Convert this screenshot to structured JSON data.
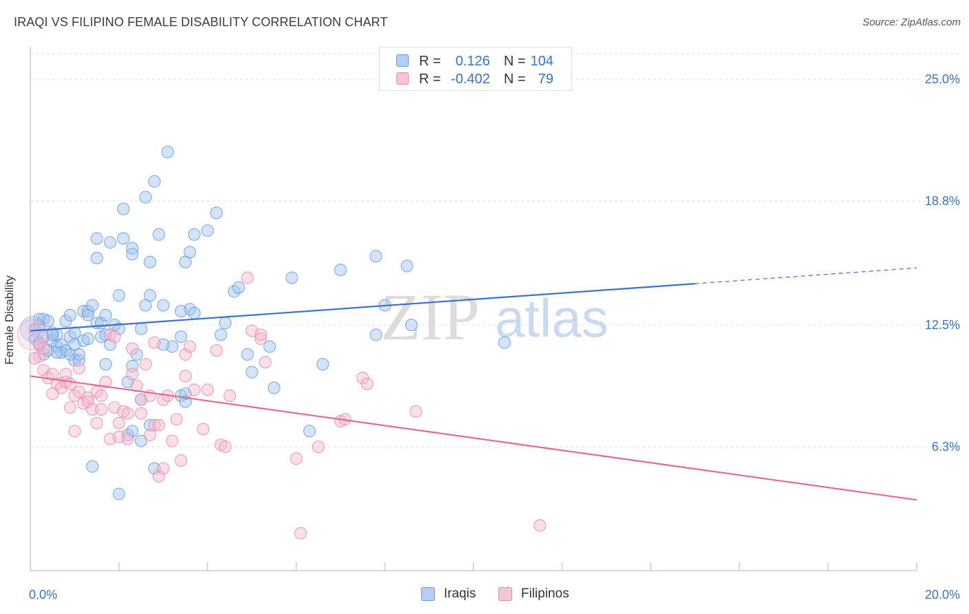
{
  "header": {
    "title": "IRAQI VS FILIPINO FEMALE DISABILITY CORRELATION CHART",
    "source": "Source: ZipAtlas.com"
  },
  "legend": {
    "series": [
      {
        "name": "Iraqis",
        "r_label": "R =",
        "r_value": "0.126",
        "n_label": "N =",
        "n_value": "104",
        "color": "#6699dd",
        "fill": "#b7cdf1"
      },
      {
        "name": "Filipinos",
        "r_label": "R =",
        "r_value": "-0.402",
        "n_label": "N =",
        "n_value": "79",
        "color": "#e888a8",
        "fill": "#f6c5d4"
      }
    ]
  },
  "watermark": {
    "part1": "ZIP",
    "part2": "atlas"
  },
  "chart_data": {
    "type": "scatter",
    "title": "IRAQI VS FILIPINO FEMALE DISABILITY CORRELATION CHART",
    "xlabel": "",
    "ylabel": "Female Disability",
    "xlim": [
      0,
      20
    ],
    "ylim": [
      0,
      26.3
    ],
    "x_tick_labels": [
      "0.0%",
      "20.0%"
    ],
    "y_ticks": [
      25.0,
      18.8,
      12.5,
      6.3
    ],
    "y_tick_labels": [
      "25.0%",
      "18.8%",
      "12.5%",
      "6.3%"
    ],
    "grid": true,
    "legend_position": "top-center",
    "series": [
      {
        "name": "Iraqis",
        "color": "#6699dd",
        "trend": {
          "x0": 0,
          "y0": 12.2,
          "x1": 15.0,
          "y1": 14.6,
          "dashed_to_x": 20.0,
          "dashed_to_y": 15.4
        },
        "points": [
          [
            0.1,
            12.3
          ],
          [
            0.1,
            11.8
          ],
          [
            0.2,
            12.5
          ],
          [
            0.2,
            11.6
          ],
          [
            0.3,
            12.8
          ],
          [
            0.3,
            11.9
          ],
          [
            0.3,
            11.0
          ],
          [
            0.4,
            12.7
          ],
          [
            0.4,
            11.2
          ],
          [
            0.5,
            12.1
          ],
          [
            0.5,
            11.7
          ],
          [
            0.6,
            11.4
          ],
          [
            0.6,
            12.0
          ],
          [
            0.7,
            11.1
          ],
          [
            0.7,
            11.5
          ],
          [
            0.8,
            12.7
          ],
          [
            0.8,
            11.2
          ],
          [
            0.9,
            11.9
          ],
          [
            0.9,
            11.0
          ],
          [
            1.0,
            12.1
          ],
          [
            1.0,
            11.5
          ],
          [
            1.0,
            10.7
          ],
          [
            1.1,
            10.7
          ],
          [
            1.1,
            11.0
          ],
          [
            1.2,
            11.7
          ],
          [
            1.2,
            13.2
          ],
          [
            1.3,
            13.2
          ],
          [
            1.3,
            13.0
          ],
          [
            1.4,
            13.5
          ],
          [
            1.5,
            16.9
          ],
          [
            1.5,
            12.6
          ],
          [
            1.5,
            15.9
          ],
          [
            1.6,
            12.6
          ],
          [
            1.6,
            11.9
          ],
          [
            1.7,
            12.0
          ],
          [
            1.7,
            13.0
          ],
          [
            1.7,
            10.5
          ],
          [
            1.8,
            16.7
          ],
          [
            1.8,
            11.5
          ],
          [
            1.9,
            12.5
          ],
          [
            2.0,
            14.0
          ],
          [
            2.0,
            12.3
          ],
          [
            2.0,
            3.9
          ],
          [
            2.1,
            16.9
          ],
          [
            2.1,
            18.4
          ],
          [
            2.2,
            9.6
          ],
          [
            2.2,
            6.9
          ],
          [
            2.3,
            16.4
          ],
          [
            2.3,
            16.1
          ],
          [
            2.3,
            10.4
          ],
          [
            2.4,
            11.0
          ],
          [
            2.5,
            12.3
          ],
          [
            2.5,
            8.7
          ],
          [
            2.5,
            6.6
          ],
          [
            2.6,
            13.5
          ],
          [
            2.6,
            19.0
          ],
          [
            2.7,
            14.0
          ],
          [
            2.7,
            15.7
          ],
          [
            2.7,
            7.4
          ],
          [
            2.8,
            5.2
          ],
          [
            2.8,
            19.8
          ],
          [
            2.9,
            17.1
          ],
          [
            3.0,
            13.5
          ],
          [
            3.1,
            21.3
          ],
          [
            3.2,
            11.4
          ],
          [
            3.4,
            8.9
          ],
          [
            3.4,
            11.9
          ],
          [
            3.5,
            15.7
          ],
          [
            3.5,
            9.0
          ],
          [
            3.5,
            8.6
          ],
          [
            3.6,
            13.3
          ],
          [
            3.6,
            16.2
          ],
          [
            3.7,
            13.1
          ],
          [
            3.7,
            17.1
          ],
          [
            4.0,
            17.3
          ],
          [
            4.2,
            18.2
          ],
          [
            4.3,
            12.0
          ],
          [
            4.4,
            12.6
          ],
          [
            4.6,
            14.2
          ],
          [
            4.7,
            14.4
          ],
          [
            4.9,
            11.0
          ],
          [
            5.0,
            10.1
          ],
          [
            5.4,
            11.4
          ],
          [
            5.5,
            9.3
          ],
          [
            5.9,
            14.9
          ],
          [
            6.3,
            7.1
          ],
          [
            6.6,
            10.5
          ],
          [
            7.0,
            15.3
          ],
          [
            7.8,
            16.0
          ],
          [
            7.8,
            12.0
          ],
          [
            8.0,
            13.5
          ],
          [
            8.5,
            15.5
          ],
          [
            8.6,
            12.5
          ],
          [
            10.7,
            11.6
          ],
          [
            0.2,
            12.8
          ],
          [
            0.5,
            12.0
          ],
          [
            0.6,
            11.1
          ],
          [
            0.9,
            13.0
          ],
          [
            1.3,
            11.8
          ],
          [
            2.3,
            7.1
          ],
          [
            1.4,
            5.3
          ],
          [
            3.4,
            13.2
          ],
          [
            3.0,
            11.5
          ],
          [
            0.2,
            11.5
          ]
        ]
      },
      {
        "name": "Filipinos",
        "color": "#e888a8",
        "trend": {
          "x0": 0,
          "y0": 9.9,
          "x1": 20.0,
          "y1": 3.6
        },
        "points": [
          [
            0.1,
            12.2
          ],
          [
            0.2,
            11.5
          ],
          [
            0.3,
            10.2
          ],
          [
            0.4,
            9.8
          ],
          [
            0.5,
            10.0
          ],
          [
            0.6,
            9.5
          ],
          [
            0.7,
            9.3
          ],
          [
            0.8,
            9.6
          ],
          [
            0.9,
            8.3
          ],
          [
            0.9,
            9.5
          ],
          [
            1.0,
            8.9
          ],
          [
            1.1,
            10.3
          ],
          [
            1.1,
            9.1
          ],
          [
            1.2,
            8.5
          ],
          [
            1.3,
            8.8
          ],
          [
            1.3,
            8.6
          ],
          [
            1.4,
            8.2
          ],
          [
            1.5,
            9.1
          ],
          [
            1.6,
            8.9
          ],
          [
            1.6,
            8.2
          ],
          [
            1.7,
            9.6
          ],
          [
            1.8,
            6.7
          ],
          [
            1.8,
            12.0
          ],
          [
            1.9,
            11.9
          ],
          [
            1.9,
            8.3
          ],
          [
            2.0,
            7.5
          ],
          [
            2.0,
            6.8
          ],
          [
            2.1,
            8.1
          ],
          [
            2.2,
            6.7
          ],
          [
            2.2,
            8.0
          ],
          [
            2.3,
            11.3
          ],
          [
            2.3,
            10.0
          ],
          [
            2.4,
            9.4
          ],
          [
            2.5,
            8.0
          ],
          [
            2.5,
            8.7
          ],
          [
            2.6,
            10.5
          ],
          [
            2.7,
            8.9
          ],
          [
            2.8,
            7.4
          ],
          [
            2.8,
            11.6
          ],
          [
            2.9,
            7.4
          ],
          [
            3.0,
            8.7
          ],
          [
            3.0,
            5.2
          ],
          [
            3.1,
            8.9
          ],
          [
            3.3,
            7.7
          ],
          [
            3.4,
            5.6
          ],
          [
            3.5,
            9.9
          ],
          [
            3.5,
            11.0
          ],
          [
            3.6,
            11.4
          ],
          [
            3.7,
            9.2
          ],
          [
            3.9,
            7.2
          ],
          [
            4.0,
            9.2
          ],
          [
            4.2,
            11.2
          ],
          [
            4.3,
            6.4
          ],
          [
            4.4,
            6.3
          ],
          [
            4.5,
            8.9
          ],
          [
            4.9,
            14.9
          ],
          [
            5.0,
            12.2
          ],
          [
            5.2,
            11.8
          ],
          [
            5.2,
            12.0
          ],
          [
            5.3,
            10.6
          ],
          [
            6.0,
            5.7
          ],
          [
            6.1,
            1.9
          ],
          [
            6.5,
            6.3
          ],
          [
            7.0,
            7.6
          ],
          [
            7.1,
            7.7
          ],
          [
            7.5,
            9.8
          ],
          [
            7.6,
            9.5
          ],
          [
            8.7,
            8.1
          ],
          [
            11.5,
            2.3
          ],
          [
            0.2,
            10.9
          ],
          [
            0.5,
            9.0
          ],
          [
            0.8,
            10.0
          ],
          [
            1.5,
            7.5
          ],
          [
            2.7,
            6.9
          ],
          [
            3.2,
            6.6
          ],
          [
            1.0,
            7.1
          ],
          [
            2.9,
            4.8
          ],
          [
            0.1,
            10.8
          ],
          [
            0.3,
            11.3
          ]
        ]
      }
    ]
  }
}
